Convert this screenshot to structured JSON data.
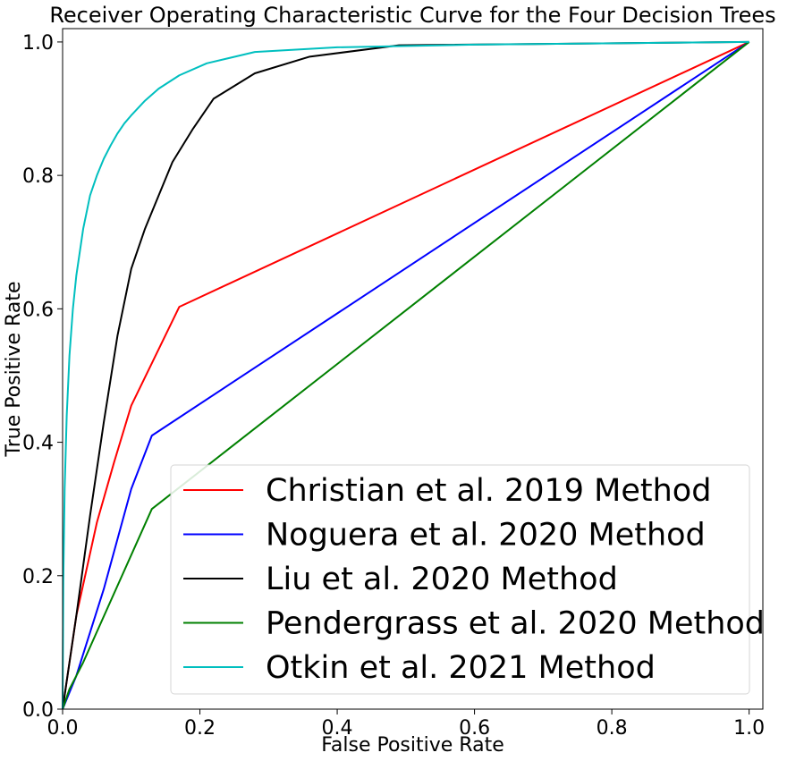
{
  "chart_data": {
    "type": "line",
    "title": "Receiver Operating Characteristic Curve for the Four Decision Trees",
    "xlabel": "False Positive Rate",
    "ylabel": "True Positive Rate",
    "xlim": [
      0,
      1.02
    ],
    "ylim": [
      0,
      1.02
    ],
    "xticks": [
      0.0,
      0.2,
      0.4,
      0.6,
      0.8,
      1.0
    ],
    "yticks": [
      0.0,
      0.2,
      0.4,
      0.6,
      0.8,
      1.0
    ],
    "xtick_labels": [
      "0.0",
      "0.2",
      "0.4",
      "0.6",
      "0.8",
      "1.0"
    ],
    "ytick_labels": [
      "0.0",
      "0.2",
      "0.4",
      "0.6",
      "0.8",
      "1.0"
    ],
    "grid": false,
    "legend_position": "lower-right",
    "series": [
      {
        "name": "Christian et al. 2019 Method",
        "color": "#ff0000",
        "x": [
          0.0,
          0.02,
          0.05,
          0.075,
          0.1,
          0.17,
          1.0
        ],
        "y": [
          0.0,
          0.14,
          0.28,
          0.37,
          0.455,
          0.603,
          1.0
        ]
      },
      {
        "name": "Noguera et al. 2020 Method",
        "color": "#0000ff",
        "x": [
          0.0,
          0.02,
          0.06,
          0.1,
          0.13,
          1.0
        ],
        "y": [
          0.0,
          0.05,
          0.18,
          0.33,
          0.41,
          1.0
        ]
      },
      {
        "name": "Liu et al. 2020 Method",
        "color": "#000000",
        "x": [
          0.0,
          0.02,
          0.04,
          0.06,
          0.08,
          0.1,
          0.12,
          0.14,
          0.16,
          0.19,
          0.22,
          0.28,
          0.36,
          0.49,
          1.0
        ],
        "y": [
          0.0,
          0.14,
          0.29,
          0.43,
          0.56,
          0.66,
          0.72,
          0.77,
          0.82,
          0.87,
          0.915,
          0.953,
          0.978,
          0.995,
          1.0
        ]
      },
      {
        "name": "Pendergrass et al. 2020 Method",
        "color": "#008000",
        "x": [
          0.0,
          0.01,
          0.03,
          0.13,
          1.0
        ],
        "y": [
          0.0,
          0.03,
          0.07,
          0.3,
          1.0
        ]
      },
      {
        "name": "Otkin et al. 2021 Method",
        "color": "#00bfbf",
        "x": [
          0.0,
          0.001,
          0.003,
          0.006,
          0.01,
          0.015,
          0.02,
          0.03,
          0.04,
          0.05,
          0.06,
          0.07,
          0.08,
          0.09,
          0.1,
          0.12,
          0.14,
          0.17,
          0.21,
          0.28,
          0.4,
          0.6,
          1.0
        ],
        "y": [
          0.0,
          0.19,
          0.33,
          0.44,
          0.53,
          0.6,
          0.65,
          0.72,
          0.77,
          0.8,
          0.825,
          0.845,
          0.863,
          0.878,
          0.89,
          0.912,
          0.93,
          0.95,
          0.968,
          0.985,
          0.992,
          0.996,
          1.0
        ]
      }
    ]
  }
}
